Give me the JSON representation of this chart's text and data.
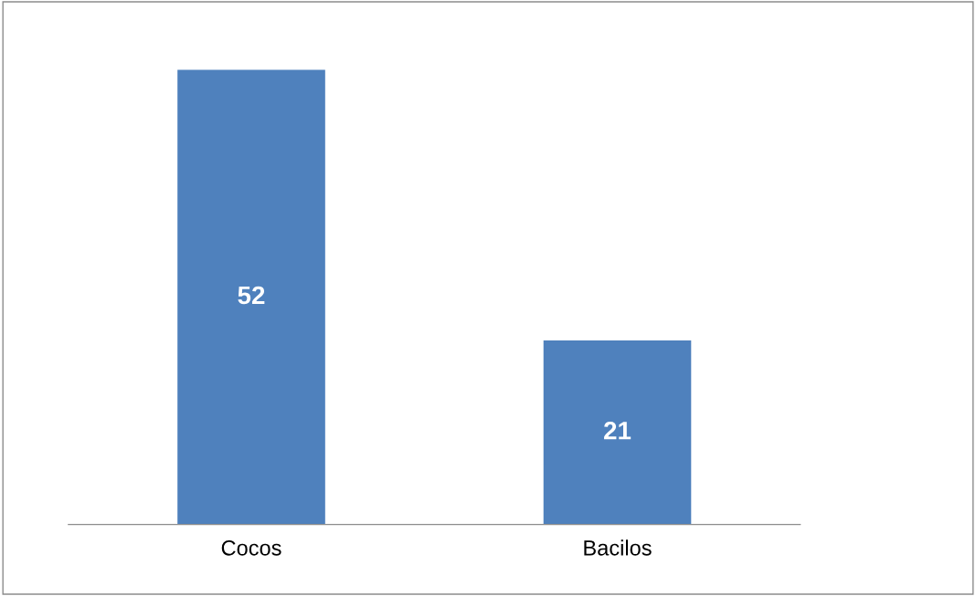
{
  "chart_data": {
    "type": "bar",
    "categories": [
      "Cocos",
      "Bacilos"
    ],
    "values": [
      52,
      21
    ],
    "color": "#4f81bd",
    "data_labels": true,
    "grid": false,
    "legend": false
  }
}
